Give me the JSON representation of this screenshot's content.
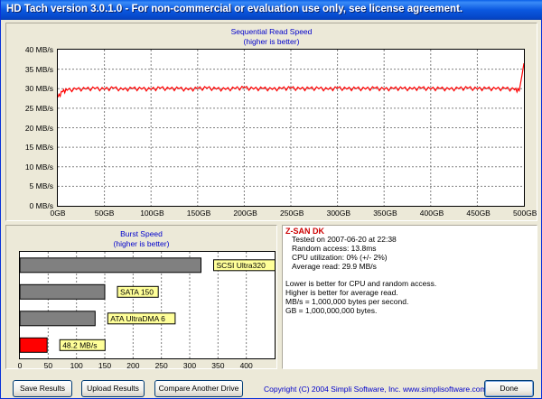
{
  "window": {
    "title": "HD Tach version 3.0.1.0  - For non-commercial or evaluation use only, see license agreement."
  },
  "read_chart": {
    "title_line1": "Sequential Read Speed",
    "title_line2": "(higher is better)",
    "y_ticks": [
      "40 MB/s",
      "35 MB/s",
      "30 MB/s",
      "25 MB/s",
      "20 MB/s",
      "15 MB/s",
      "10 MB/s",
      "5 MB/s",
      "0 MB/s"
    ],
    "x_ticks": [
      "0GB",
      "50GB",
      "100GB",
      "150GB",
      "200GB",
      "250GB",
      "300GB",
      "350GB",
      "400GB",
      "450GB",
      "500GB"
    ],
    "line_color": "#FF0000"
  },
  "burst_chart": {
    "title_line1": "Burst Speed",
    "title_line2": "(higher is better)",
    "x_ticks": [
      "0",
      "50",
      "100",
      "150",
      "200",
      "250",
      "300",
      "350",
      "400"
    ],
    "label_bg": "#FFFF99"
  },
  "chart_data": [
    {
      "type": "line",
      "title": "Sequential Read Speed",
      "subtitle": "(higher is better)",
      "x_unit": "GB",
      "y_unit": "MB/s",
      "xlim": [
        0,
        500
      ],
      "ylim": [
        0,
        40
      ],
      "grid": true,
      "series": [
        {
          "color": "#FF0000",
          "x": [
            0,
            5,
            10,
            20,
            30,
            40,
            50,
            60,
            70,
            80,
            90,
            100,
            110,
            120,
            130,
            140,
            150,
            160,
            170,
            180,
            190,
            200,
            210,
            220,
            230,
            240,
            250,
            260,
            270,
            280,
            290,
            300,
            310,
            320,
            330,
            340,
            350,
            360,
            370,
            380,
            390,
            400,
            410,
            420,
            430,
            440,
            450,
            460,
            470,
            480,
            490,
            495,
            498,
            500
          ],
          "y": [
            27.8,
            29.2,
            29.6,
            29.8,
            29.9,
            30.0,
            29.8,
            30.1,
            29.7,
            30.0,
            29.9,
            29.8,
            30.1,
            29.9,
            30.0,
            29.7,
            30.0,
            30.1,
            29.9,
            29.8,
            30.0,
            30.2,
            29.9,
            30.0,
            29.8,
            30.0,
            30.1,
            29.9,
            30.0,
            30.0,
            29.8,
            30.1,
            29.9,
            30.0,
            29.9,
            30.1,
            29.8,
            30.0,
            30.0,
            29.9,
            30.1,
            29.9,
            30.0,
            29.8,
            30.0,
            30.1,
            29.9,
            30.0,
            29.9,
            30.0,
            29.7,
            29.5,
            33.5,
            36.5
          ]
        }
      ]
    },
    {
      "type": "bar",
      "title": "Burst Speed",
      "subtitle": "(higher is better)",
      "orientation": "horizontal",
      "xlim": [
        0,
        450
      ],
      "grid": true,
      "categories": [
        "SCSI Ultra320",
        "SATA 150",
        "ATA UltraDMA 6",
        "48.2 MB/s"
      ],
      "values": [
        320,
        150,
        133,
        48.2
      ],
      "colors": [
        "#808080",
        "#808080",
        "#808080",
        "#FF0000"
      ]
    }
  ],
  "results": {
    "drive_name": "Z-SAN DK",
    "tested_on": "Tested on 2007-06-20 at 22:38",
    "random_access": "Random access: 13.8ms",
    "cpu": "CPU utilization: 0% (+/- 2%)",
    "average_read": "Average read: 29.9 MB/s",
    "note1": "Lower is better for CPU and random access.",
    "note2": "Higher is better for average read.",
    "note3": "MB/s = 1,000,000 bytes per second.",
    "note4": "GB = 1,000,000,000 bytes.",
    "drive_name_color": "#CC0000"
  },
  "buttons": {
    "save": "Save Results",
    "upload": "Upload Results",
    "compare": "Compare Another Drive",
    "done": "Done"
  },
  "footer": {
    "copyright": "Copyright (C) 2004 Simpli Software, Inc. www.simplisoftware.com"
  }
}
